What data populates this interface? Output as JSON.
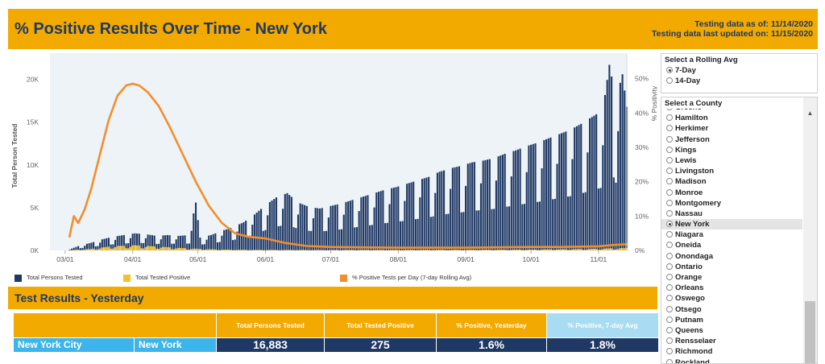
{
  "header": {
    "title": "% Positive Results Over Time - New York",
    "as_of": "Testing data as of: 11/14/2020",
    "last_updated": "Testing data last updated on: 11/15/2020"
  },
  "colors": {
    "accent": "#f2a900",
    "navy": "#1f3864",
    "tested_bar": "#1f3864",
    "positive_bar": "#f2c12e",
    "rolling_line": "#f28e2b",
    "light_blue": "#3db4ea",
    "pale_blue": "#a9dcf2",
    "plot_bg": "#eef3f8"
  },
  "chart_data": {
    "type": "bar",
    "title": "",
    "xlabel": "",
    "ylabel": "Total Person Tested",
    "y2label": "% Positivity",
    "x_ticks": [
      "03/01",
      "04/01",
      "05/01",
      "06/01",
      "07/01",
      "08/01",
      "09/01",
      "10/01",
      "11/01"
    ],
    "y_ticks": [
      "0K",
      "5K",
      "10K",
      "15K",
      "20K"
    ],
    "y2_ticks": [
      "0%",
      "10%",
      "20%",
      "30%",
      "40%",
      "50%"
    ],
    "ylim": [
      0,
      22500
    ],
    "y2lim": [
      0,
      56
    ],
    "x_start": "02/23/2020",
    "x_end": "11/14/2020",
    "grid": false,
    "legend_position": "bottom",
    "series": [
      {
        "name": "Total Persons Tested",
        "type": "bar",
        "points": [
          [
            "03/03",
            120
          ],
          [
            "03/08",
            600
          ],
          [
            "03/13",
            900
          ],
          [
            "03/18",
            1300
          ],
          [
            "03/23",
            1600
          ],
          [
            "03/28",
            1800
          ],
          [
            "04/02",
            2000
          ],
          [
            "04/07",
            1900
          ],
          [
            "04/12",
            1700
          ],
          [
            "04/17",
            1800
          ],
          [
            "04/22",
            1700
          ],
          [
            "04/27",
            1800
          ],
          [
            "04/30",
            5600
          ],
          [
            "05/02",
            1500
          ],
          [
            "05/07",
            1800
          ],
          [
            "05/12",
            2300
          ],
          [
            "05/17",
            2700
          ],
          [
            "05/22",
            3300
          ],
          [
            "05/27",
            4200
          ],
          [
            "06/01",
            5300
          ],
          [
            "06/06",
            6200
          ],
          [
            "06/11",
            6700
          ],
          [
            "06/16",
            5600
          ],
          [
            "06/21",
            5100
          ],
          [
            "06/26",
            4900
          ],
          [
            "07/01",
            5200
          ],
          [
            "07/06",
            5500
          ],
          [
            "07/11",
            5900
          ],
          [
            "07/16",
            6300
          ],
          [
            "07/21",
            6700
          ],
          [
            "07/26",
            7100
          ],
          [
            "07/31",
            7400
          ],
          [
            "08/05",
            7800
          ],
          [
            "08/10",
            8200
          ],
          [
            "08/15",
            8600
          ],
          [
            "08/20",
            9200
          ],
          [
            "08/25",
            9600
          ],
          [
            "08/30",
            9900
          ],
          [
            "09/04",
            10300
          ],
          [
            "09/09",
            10500
          ],
          [
            "09/14",
            10800
          ],
          [
            "09/19",
            11300
          ],
          [
            "09/24",
            11700
          ],
          [
            "09/29",
            12200
          ],
          [
            "10/04",
            12600
          ],
          [
            "10/09",
            13100
          ],
          [
            "10/14",
            13600
          ],
          [
            "10/19",
            14100
          ],
          [
            "10/24",
            14800
          ],
          [
            "10/29",
            15600
          ],
          [
            "11/03",
            16400
          ],
          [
            "11/06",
            21700
          ],
          [
            "11/09",
            17600
          ],
          [
            "11/12",
            20600
          ],
          [
            "11/14",
            16800
          ]
        ]
      },
      {
        "name": "Total Tested Positive",
        "type": "bar",
        "points": [
          [
            "03/03",
            20
          ],
          [
            "03/13",
            180
          ],
          [
            "03/23",
            500
          ],
          [
            "04/02",
            600
          ],
          [
            "04/12",
            460
          ],
          [
            "04/22",
            300
          ],
          [
            "05/02",
            180
          ],
          [
            "05/12",
            100
          ],
          [
            "05/22",
            70
          ],
          [
            "06/01",
            60
          ],
          [
            "06/11",
            55
          ],
          [
            "06/21",
            50
          ],
          [
            "07/01",
            50
          ],
          [
            "07/11",
            60
          ],
          [
            "07/21",
            60
          ],
          [
            "08/01",
            60
          ],
          [
            "08/11",
            65
          ],
          [
            "08/21",
            70
          ],
          [
            "09/01",
            70
          ],
          [
            "09/11",
            80
          ],
          [
            "09/21",
            90
          ],
          [
            "10/01",
            100
          ],
          [
            "10/11",
            130
          ],
          [
            "10/21",
            150
          ],
          [
            "11/01",
            200
          ],
          [
            "11/08",
            260
          ],
          [
            "11/14",
            275
          ]
        ]
      },
      {
        "name": "% Positive Tests per Day (7-day Rolling Avg)",
        "type": "line",
        "axis": "y2",
        "points": [
          [
            "03/03",
            4
          ],
          [
            "03/05",
            10
          ],
          [
            "03/07",
            8
          ],
          [
            "03/10",
            12
          ],
          [
            "03/13",
            18
          ],
          [
            "03/17",
            28
          ],
          [
            "03/21",
            38
          ],
          [
            "03/25",
            45
          ],
          [
            "03/29",
            48
          ],
          [
            "04/01",
            48.5
          ],
          [
            "04/04",
            48
          ],
          [
            "04/08",
            46
          ],
          [
            "04/13",
            42
          ],
          [
            "04/18",
            36
          ],
          [
            "04/24",
            28
          ],
          [
            "04/30",
            20
          ],
          [
            "05/06",
            13
          ],
          [
            "05/12",
            8
          ],
          [
            "05/18",
            5
          ],
          [
            "05/24",
            4
          ],
          [
            "06/01",
            3.5
          ],
          [
            "06/10",
            2.2
          ],
          [
            "06/20",
            1.3
          ],
          [
            "07/01",
            1.0
          ],
          [
            "07/15",
            0.9
          ],
          [
            "08/01",
            0.8
          ],
          [
            "08/15",
            0.8
          ],
          [
            "09/01",
            0.8
          ],
          [
            "09/15",
            0.9
          ],
          [
            "10/01",
            1.0
          ],
          [
            "10/15",
            1.0
          ],
          [
            "11/01",
            1.2
          ],
          [
            "11/08",
            1.6
          ],
          [
            "11/14",
            1.8
          ]
        ]
      }
    ]
  },
  "rolling": {
    "title": "Select a Rolling Avg",
    "options": [
      "7-Day",
      "14-Day"
    ]
  },
  "county": {
    "title": "Select a County",
    "items": [
      "Greene",
      "Hamilton",
      "Herkimer",
      "Jefferson",
      "Kings",
      "Lewis",
      "Livingston",
      "Madison",
      "Monroe",
      "Montgomery",
      "Nassau",
      "New York",
      "Niagara",
      "Oneida",
      "Onondaga",
      "Ontario",
      "Orange",
      "Orleans",
      "Oswego",
      "Otsego",
      "Putnam",
      "Queens",
      "Rensselaer",
      "Richmond",
      "Rockland"
    ]
  },
  "results": {
    "title": "Test Results - Yesterday",
    "headers": {
      "tested": "Total Persons Tested",
      "positive": "Total Tested Positive",
      "pct_yesterday": "% Positive, Yesterday",
      "pct_7day": "% Positive, 7-day Avg"
    },
    "row": {
      "region": "New York City",
      "county": "New York",
      "tested": "16,883",
      "positive": "275",
      "pct_yesterday": "1.6%",
      "pct_7day": "1.8%"
    }
  }
}
